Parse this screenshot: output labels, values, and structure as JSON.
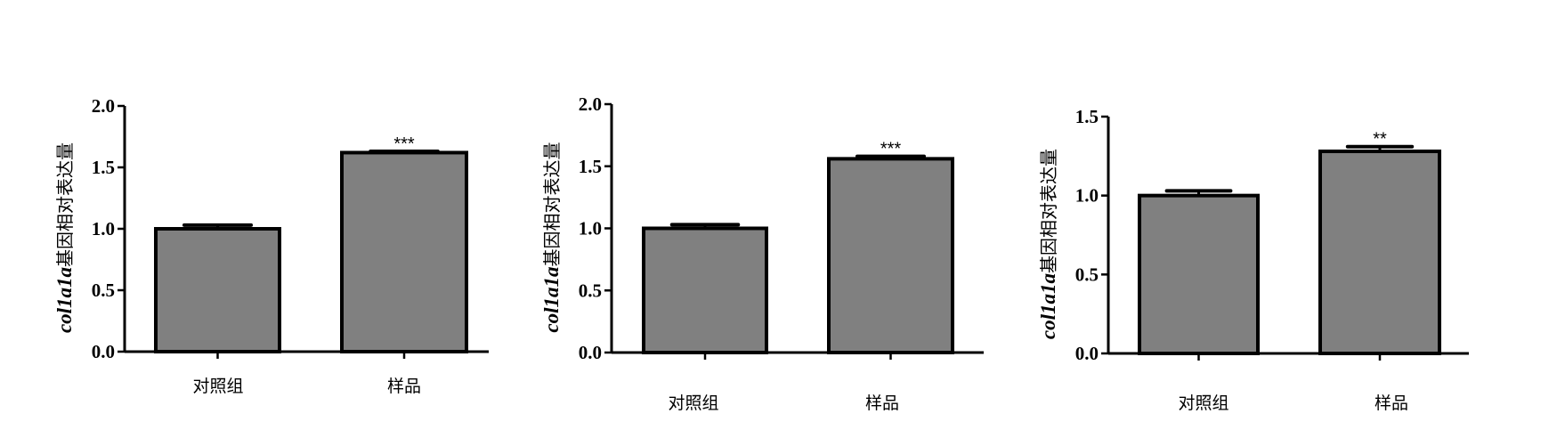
{
  "chart_data": [
    {
      "type": "bar",
      "categories": [
        "对照组",
        "样品"
      ],
      "values": [
        1.0,
        1.62
      ],
      "error_upper": [
        1.03,
        1.63
      ],
      "significance": [
        "",
        "***"
      ],
      "ylabel_gene": "col1a1a",
      "ylabel_text": "基因相对表达量",
      "ylim": [
        0,
        2.0
      ],
      "yticks": [
        "0.0",
        "0.5",
        "1.0",
        "1.5",
        "2.0"
      ],
      "bar_color": "#808080",
      "grid": false
    },
    {
      "type": "bar",
      "categories": [
        "对照组",
        "样品"
      ],
      "values": [
        1.0,
        1.56
      ],
      "error_upper": [
        1.03,
        1.58
      ],
      "significance": [
        "",
        "***"
      ],
      "ylabel_gene": "col1a1a",
      "ylabel_text": "基因相对表达量",
      "ylim": [
        0,
        2.0
      ],
      "yticks": [
        "0.0",
        "0.5",
        "1.0",
        "1.5",
        "2.0"
      ],
      "bar_color": "#808080",
      "grid": false
    },
    {
      "type": "bar",
      "categories": [
        "对照组",
        "样品"
      ],
      "values": [
        1.0,
        1.28
      ],
      "error_upper": [
        1.03,
        1.31
      ],
      "significance": [
        "",
        "**"
      ],
      "ylabel_gene": "col1a1a",
      "ylabel_text": "基因相对表达量",
      "ylim": [
        0,
        1.5
      ],
      "yticks": [
        "0.0",
        "0.5",
        "1.0",
        "1.5"
      ],
      "bar_color": "#808080",
      "grid": false
    }
  ]
}
